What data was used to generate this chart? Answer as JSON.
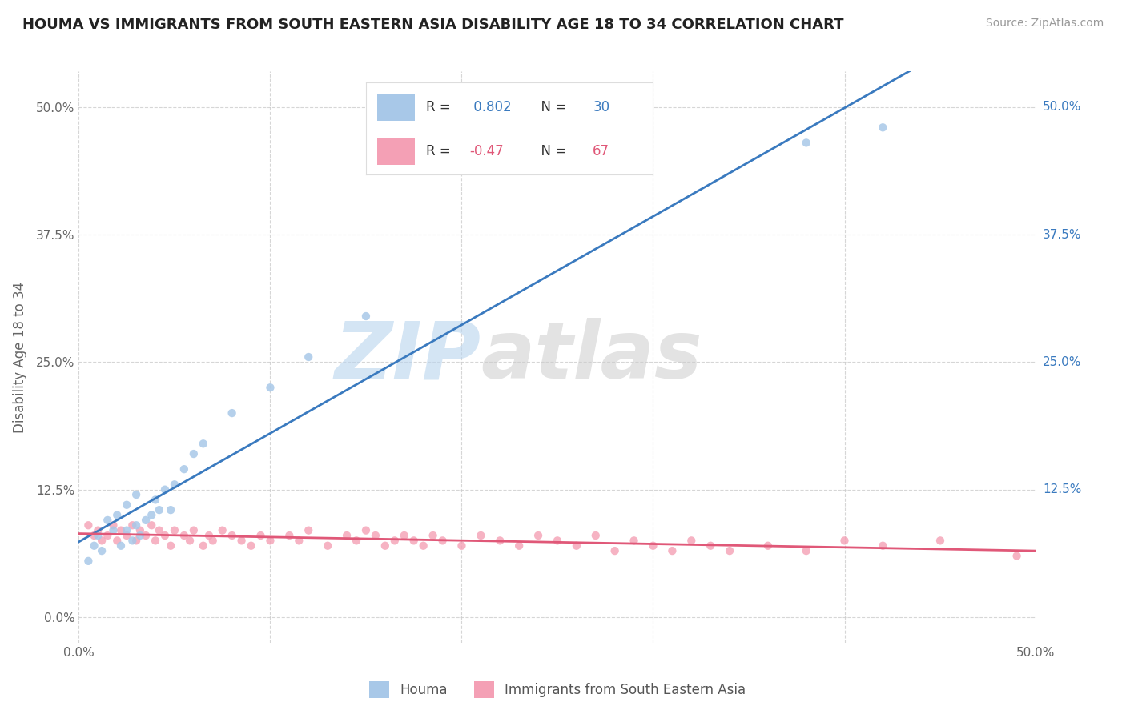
{
  "title": "HOUMA VS IMMIGRANTS FROM SOUTH EASTERN ASIA DISABILITY AGE 18 TO 34 CORRELATION CHART",
  "source": "Source: ZipAtlas.com",
  "ylabel": "Disability Age 18 to 34",
  "xlim": [
    0.0,
    0.5
  ],
  "ylim": [
    -0.025,
    0.535
  ],
  "ytick_labels": [
    "0.0%",
    "12.5%",
    "25.0%",
    "37.5%",
    "50.0%"
  ],
  "ytick_values": [
    0.0,
    0.125,
    0.25,
    0.375,
    0.5
  ],
  "xtick_labels": [
    "0.0%",
    "",
    "",
    "",
    "",
    "50.0%"
  ],
  "xtick_values": [
    0.0,
    0.1,
    0.2,
    0.3,
    0.4,
    0.5
  ],
  "houma_color": "#a8c8e8",
  "immigrants_color": "#f4a0b5",
  "line_houma_color": "#3a7abf",
  "line_immigrants_color": "#e05878",
  "R_houma": 0.802,
  "N_houma": 30,
  "R_immigrants": -0.47,
  "N_immigrants": 67,
  "legend_label_houma": "Houma",
  "legend_label_immigrants": "Immigrants from South Eastern Asia",
  "background_color": "#ffffff",
  "grid_color": "#cccccc",
  "houma_scatter_x": [
    0.005,
    0.008,
    0.01,
    0.012,
    0.015,
    0.018,
    0.02,
    0.022,
    0.025,
    0.025,
    0.028,
    0.03,
    0.03,
    0.032,
    0.035,
    0.038,
    0.04,
    0.042,
    0.045,
    0.048,
    0.05,
    0.055,
    0.06,
    0.065,
    0.08,
    0.1,
    0.12,
    0.15,
    0.38,
    0.42
  ],
  "houma_scatter_y": [
    0.055,
    0.07,
    0.08,
    0.065,
    0.095,
    0.085,
    0.1,
    0.07,
    0.085,
    0.11,
    0.075,
    0.09,
    0.12,
    0.08,
    0.095,
    0.1,
    0.115,
    0.105,
    0.125,
    0.105,
    0.13,
    0.145,
    0.16,
    0.17,
    0.2,
    0.225,
    0.255,
    0.295,
    0.465,
    0.48
  ],
  "immigrants_scatter_x": [
    0.005,
    0.008,
    0.01,
    0.012,
    0.015,
    0.018,
    0.02,
    0.022,
    0.025,
    0.028,
    0.03,
    0.032,
    0.035,
    0.038,
    0.04,
    0.042,
    0.045,
    0.048,
    0.05,
    0.055,
    0.058,
    0.06,
    0.065,
    0.068,
    0.07,
    0.075,
    0.08,
    0.085,
    0.09,
    0.095,
    0.1,
    0.11,
    0.115,
    0.12,
    0.13,
    0.14,
    0.145,
    0.15,
    0.155,
    0.16,
    0.165,
    0.17,
    0.175,
    0.18,
    0.185,
    0.19,
    0.2,
    0.21,
    0.22,
    0.23,
    0.24,
    0.25,
    0.26,
    0.27,
    0.28,
    0.29,
    0.3,
    0.31,
    0.32,
    0.33,
    0.34,
    0.36,
    0.38,
    0.4,
    0.42,
    0.45,
    0.49
  ],
  "immigrants_scatter_y": [
    0.09,
    0.08,
    0.085,
    0.075,
    0.08,
    0.09,
    0.075,
    0.085,
    0.08,
    0.09,
    0.075,
    0.085,
    0.08,
    0.09,
    0.075,
    0.085,
    0.08,
    0.07,
    0.085,
    0.08,
    0.075,
    0.085,
    0.07,
    0.08,
    0.075,
    0.085,
    0.08,
    0.075,
    0.07,
    0.08,
    0.075,
    0.08,
    0.075,
    0.085,
    0.07,
    0.08,
    0.075,
    0.085,
    0.08,
    0.07,
    0.075,
    0.08,
    0.075,
    0.07,
    0.08,
    0.075,
    0.07,
    0.08,
    0.075,
    0.07,
    0.08,
    0.075,
    0.07,
    0.08,
    0.065,
    0.075,
    0.07,
    0.065,
    0.075,
    0.07,
    0.065,
    0.07,
    0.065,
    0.075,
    0.07,
    0.075,
    0.06
  ]
}
